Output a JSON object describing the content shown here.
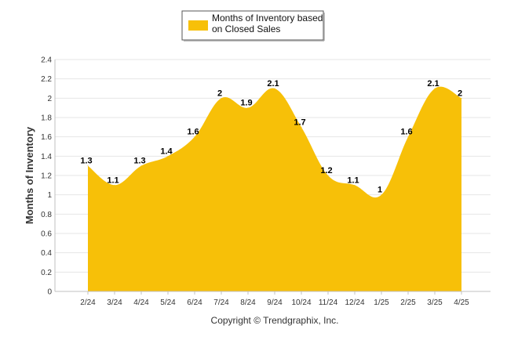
{
  "chart_data": {
    "type": "area",
    "categories": [
      "2/24",
      "3/24",
      "4/24",
      "5/24",
      "6/24",
      "7/24",
      "8/24",
      "9/24",
      "10/24",
      "11/24",
      "12/24",
      "1/25",
      "2/25",
      "3/25",
      "4/25"
    ],
    "series": [
      {
        "name": "Months of Inventory based on Closed Sales",
        "values": [
          1.3,
          1.1,
          1.3,
          1.4,
          1.6,
          2,
          1.9,
          2.1,
          1.7,
          1.2,
          1.1,
          1,
          1.6,
          2.1,
          2
        ],
        "labels": [
          "1.3",
          "1.1",
          "1.3",
          "1.4",
          "1.6",
          "2",
          "1.9",
          "2.1",
          "1.7",
          "1.2",
          "1.1",
          "1",
          "1.6",
          "2.1",
          "2"
        ],
        "color": "#F7C008"
      }
    ],
    "ylabel": "Months of Inventory",
    "xlabel": "",
    "ylim": [
      0,
      2.4
    ],
    "yticks": [
      "0",
      "0.2",
      "0.4",
      "0.6",
      "0.8",
      "1",
      "1.2",
      "1.4",
      "1.6",
      "1.8",
      "2",
      "2.2",
      "2.4"
    ],
    "grid": true,
    "legend": "top-center"
  },
  "legend_lines": [
    "Months of Inventory based",
    "on Closed Sales"
  ],
  "footer": "Copyright © Trendgraphix, Inc.",
  "colors": {
    "gridline": "#e6e6e6",
    "axis": "#c0c0c0",
    "area": "#F7C008"
  }
}
